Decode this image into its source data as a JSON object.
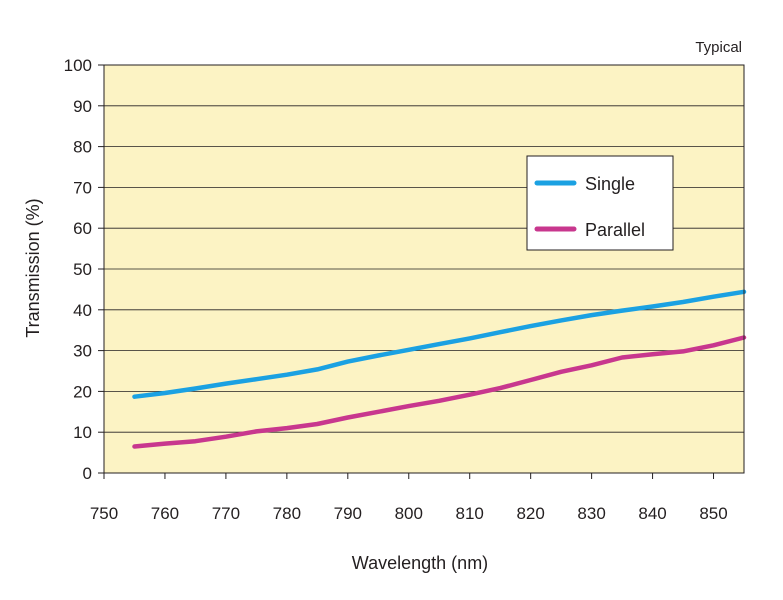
{
  "chart_data": {
    "type": "line",
    "title": "",
    "note": "Typical",
    "xlabel": "Wavelength (nm)",
    "ylabel": "Transmission (%)",
    "xlim": [
      750,
      855
    ],
    "ylim": [
      0,
      100
    ],
    "xticks": [
      750,
      760,
      770,
      780,
      790,
      800,
      810,
      820,
      830,
      840,
      850
    ],
    "yticks": [
      0,
      10,
      20,
      30,
      40,
      50,
      60,
      70,
      80,
      90,
      100
    ],
    "grid": true,
    "legend_position": "upper-right",
    "series": [
      {
        "name": "Single",
        "color": "#1ba1e2",
        "x": [
          755,
          760,
          765,
          770,
          775,
          780,
          785,
          790,
          795,
          800,
          805,
          810,
          815,
          820,
          825,
          830,
          835,
          840,
          845,
          850,
          855
        ],
        "y": [
          18.7,
          19.6,
          20.7,
          21.9,
          23.0,
          24.1,
          25.4,
          27.3,
          28.8,
          30.2,
          31.6,
          33.0,
          34.5,
          36.0,
          37.4,
          38.7,
          39.8,
          40.8,
          41.9,
          43.2,
          44.4
        ]
      },
      {
        "name": "Parallel",
        "color": "#c8378e",
        "x": [
          755,
          760,
          765,
          770,
          775,
          780,
          785,
          790,
          795,
          800,
          805,
          810,
          815,
          820,
          825,
          830,
          835,
          840,
          845,
          850,
          855
        ],
        "y": [
          6.5,
          7.2,
          7.8,
          8.9,
          10.2,
          11.0,
          12.0,
          13.6,
          15.0,
          16.4,
          17.7,
          19.2,
          20.8,
          22.8,
          24.8,
          26.4,
          28.3,
          29.1,
          29.8,
          31.3,
          33.2
        ]
      }
    ]
  }
}
